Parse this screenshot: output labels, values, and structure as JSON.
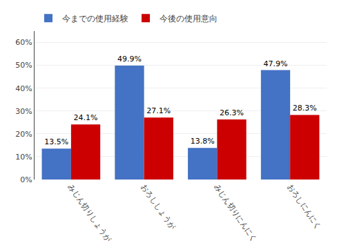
{
  "chart_data": {
    "type": "bar",
    "categories": [
      "みじん切りしょうが",
      "おろししょうが",
      "みじん切りにんにく",
      "おろしにんにく"
    ],
    "series": [
      {
        "name": "今までの使用経験",
        "color": "#4472C4",
        "values": [
          13.5,
          49.9,
          13.8,
          47.9
        ],
        "value_labels": [
          "13.5%",
          "49.9%",
          "13.8%",
          "47.9%"
        ]
      },
      {
        "name": "今後の使用意向",
        "color": "#CC0000",
        "values": [
          24.1,
          27.1,
          26.3,
          28.3
        ],
        "value_labels": [
          "24.1%",
          "27.1%",
          "26.3%",
          "28.3%"
        ]
      }
    ],
    "ylim": [
      0,
      65
    ],
    "yticks": [
      {
        "value": 0,
        "label": "0%"
      },
      {
        "value": 10,
        "label": "10%"
      },
      {
        "value": 20,
        "label": "20%"
      },
      {
        "value": 30,
        "label": "30%"
      },
      {
        "value": 40,
        "label": "40%"
      },
      {
        "value": 50,
        "label": "50%"
      },
      {
        "value": 60,
        "label": "60%"
      }
    ],
    "grid": true,
    "legend": "upper left",
    "data_labels": true
  }
}
